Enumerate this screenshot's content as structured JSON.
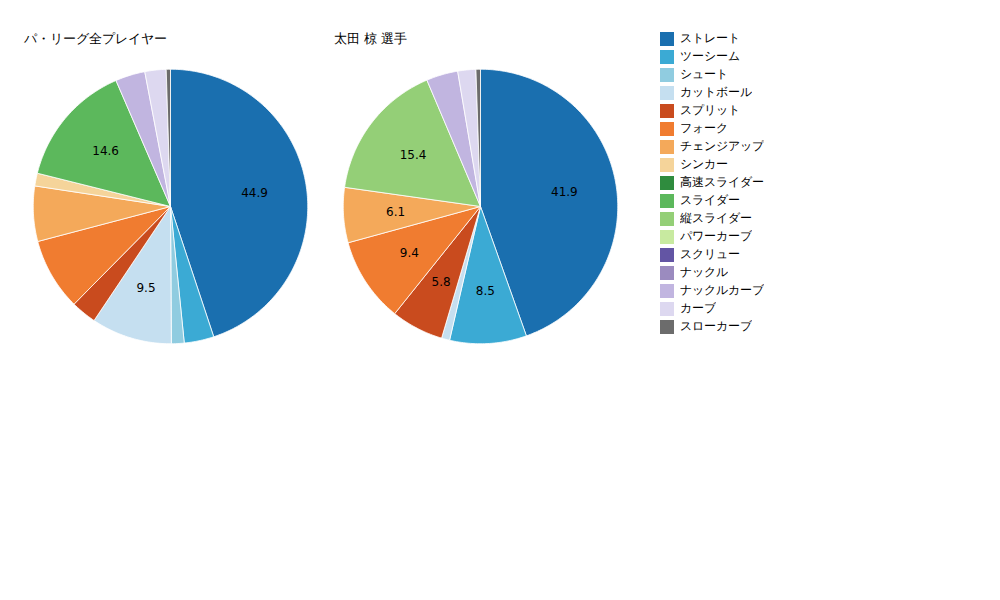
{
  "chart_data": [
    {
      "type": "pie",
      "title": "パ・リーグ全プレイヤー",
      "categories": [
        "ストレート",
        "ツーシーム",
        "シュート",
        "カットボール",
        "スプリット",
        "フォーク",
        "チェンジアップ",
        "シンカー",
        "スライダー",
        "ナックルカーブ",
        "カーブ",
        "スローカーブ"
      ],
      "values": [
        44.9,
        3.5,
        1.5,
        9.5,
        3.0,
        8.5,
        6.5,
        1.5,
        14.6,
        3.5,
        2.5,
        0.5
      ],
      "value_labels": [
        "44.9",
        null,
        null,
        "9.5",
        null,
        null,
        null,
        null,
        "14.6",
        null,
        null,
        null
      ],
      "colors": [
        "#1a6faf",
        "#3baad4",
        "#90cce0",
        "#c5dff0",
        "#c94b1e",
        "#f07c30",
        "#f4a95a",
        "#f5d49a",
        "#5cb85c",
        "#c1b5e0",
        "#ddd8f0",
        "#6c6c6c"
      ],
      "data_labels": true
    },
    {
      "type": "pie",
      "title": "太田 椋 選手",
      "categories": [
        "ストレート",
        "ツーシーム",
        "カットボール",
        "スプリット",
        "フォーク",
        "チェンジアップ",
        "縦スライダー",
        "ナックルカーブ",
        "カーブ",
        "スローカーブ"
      ],
      "values": [
        41.9,
        8.5,
        0.9,
        5.8,
        9.4,
        6.1,
        15.4,
        3.5,
        2.0,
        0.5
      ],
      "value_labels": [
        "41.9",
        "8.5",
        null,
        "5.8",
        "9.4",
        "6.1",
        "15.4",
        null,
        null,
        null
      ],
      "colors": [
        "#1a6faf",
        "#3baad4",
        "#c5dff0",
        "#c94b1e",
        "#f07c30",
        "#f4a95a",
        "#94cf77",
        "#c1b5e0",
        "#ddd8f0",
        "#6c6c6c"
      ],
      "data_labels": true,
      "legend": "right",
      "series": [
        {
          "name": "ストレート",
          "color": "#1a6faf"
        },
        {
          "name": "ツーシーム",
          "color": "#3baad4"
        },
        {
          "name": "シュート",
          "color": "#90cce0"
        },
        {
          "name": "カットボール",
          "color": "#c5dff0"
        },
        {
          "name": "スプリット",
          "color": "#c94b1e"
        },
        {
          "name": "フォーク",
          "color": "#f07c30"
        },
        {
          "name": "チェンジアップ",
          "color": "#f4a95a"
        },
        {
          "name": "シンカー",
          "color": "#f5d49a"
        },
        {
          "name": "高速スライダー",
          "color": "#2f8c3e"
        },
        {
          "name": "スライダー",
          "color": "#5cb85c"
        },
        {
          "name": "縦スライダー",
          "color": "#94cf77"
        },
        {
          "name": "パワーカーブ",
          "color": "#c8eaa0"
        },
        {
          "name": "スクリュー",
          "color": "#6355a4"
        },
        {
          "name": "ナックル",
          "color": "#9b8bbf"
        },
        {
          "name": "ナックルカーブ",
          "color": "#c1b5e0"
        },
        {
          "name": "カーブ",
          "color": "#ddd8f0"
        },
        {
          "name": "スローカーブ",
          "color": "#6c6c6c"
        }
      ]
    }
  ]
}
